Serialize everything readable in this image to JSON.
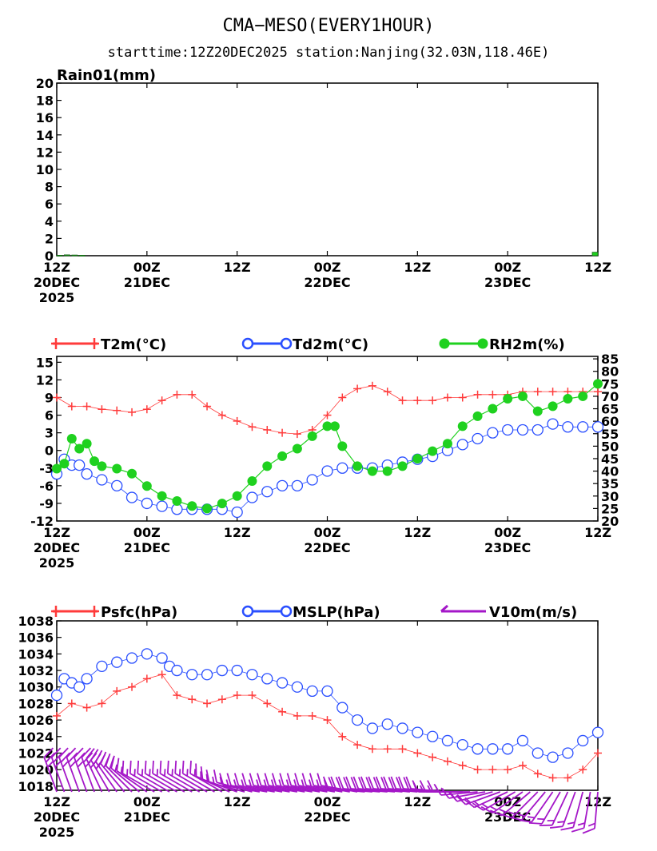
{
  "title": "CMA−MESO(EVERY1HOUR)",
  "subtitle": "starttime:12Z20DEC2025    station:Nanjing(32.03N,118.46E)",
  "x_ticks": [
    {
      "t": 0,
      "lines": [
        "12Z",
        "20DEC",
        "2025"
      ]
    },
    {
      "t": 12,
      "lines": [
        "00Z",
        "21DEC"
      ]
    },
    {
      "t": 24,
      "lines": [
        "12Z"
      ]
    },
    {
      "t": 36,
      "lines": [
        "00Z",
        "22DEC"
      ]
    },
    {
      "t": 48,
      "lines": [
        "12Z"
      ]
    },
    {
      "t": 60,
      "lines": [
        "00Z",
        "23DEC"
      ]
    },
    {
      "t": 72,
      "lines": [
        "12Z"
      ]
    }
  ],
  "colors": {
    "t2m": "#ff3b3b",
    "td2m": "#2a4fff",
    "rh2m": "#1fd11f",
    "psfc": "#ff3b3b",
    "mslp": "#2a4fff",
    "v10m": "#a417c8",
    "rain": "#1fd11f"
  },
  "chart_data": [
    {
      "type": "bar",
      "ylabel": "Rain01(mm)",
      "ylim": [
        0,
        20
      ],
      "yticks": [
        0,
        2,
        4,
        6,
        8,
        10,
        12,
        14,
        16,
        18,
        20
      ],
      "x": [
        0,
        1,
        2,
        3,
        72
      ],
      "values": [
        0.05,
        0.1,
        0.08,
        0.05,
        0.4
      ]
    },
    {
      "type": "line",
      "ylim": [
        -12,
        16
      ],
      "yticks": [
        -12,
        -9,
        -6,
        -3,
        0,
        3,
        6,
        9,
        12,
        15
      ],
      "y2lim": [
        20,
        86
      ],
      "y2ticks": [
        20,
        25,
        30,
        35,
        40,
        45,
        50,
        55,
        60,
        65,
        70,
        75,
        80,
        85
      ],
      "series": [
        {
          "name": "T2m(°C)",
          "axis": "left",
          "marker": "plus",
          "x": [
            0,
            2,
            4,
            6,
            8,
            10,
            12,
            14,
            16,
            18,
            20,
            22,
            24,
            26,
            28,
            30,
            32,
            34,
            36,
            38,
            40,
            42,
            44,
            46,
            48,
            50,
            52,
            54,
            56,
            58,
            60,
            62,
            64,
            66,
            68,
            70,
            72
          ],
          "y": [
            9,
            7.5,
            7.5,
            7,
            6.8,
            6.5,
            7,
            8.5,
            9.5,
            9.5,
            7.5,
            6,
            5,
            4,
            3.5,
            3,
            2.8,
            3.5,
            6,
            9,
            10.5,
            11,
            10,
            8.5,
            8.5,
            8.5,
            9,
            9,
            9.5,
            9.5,
            9.5,
            10,
            10,
            10,
            10,
            10,
            10
          ]
        },
        {
          "name": "Td2m(°C)",
          "axis": "left",
          "marker": "circle",
          "x": [
            0,
            1,
            2,
            3,
            4,
            6,
            8,
            10,
            12,
            14,
            16,
            18,
            20,
            22,
            24,
            26,
            28,
            30,
            32,
            34,
            36,
            38,
            40,
            42,
            44,
            46,
            48,
            50,
            52,
            54,
            56,
            58,
            60,
            62,
            64,
            66,
            68,
            70,
            72
          ],
          "y": [
            -4,
            -1.5,
            -2.5,
            -2.5,
            -4,
            -5,
            -6,
            -8,
            -9,
            -9.5,
            -10,
            -10,
            -10,
            -10,
            -10.5,
            -8,
            -7,
            -6,
            -6,
            -5,
            -3.5,
            -3,
            -3,
            -3,
            -2.5,
            -2,
            -1.5,
            -1,
            0,
            1,
            2,
            3,
            3.5,
            3.5,
            3.5,
            4.5,
            4,
            4,
            4
          ]
        },
        {
          "name": "RH2m(%)",
          "axis": "right",
          "marker": "dot",
          "x": [
            0,
            1,
            2,
            3,
            4,
            5,
            6,
            8,
            10,
            12,
            14,
            16,
            18,
            20,
            22,
            24,
            26,
            28,
            30,
            32,
            34,
            36,
            37,
            38,
            40,
            42,
            44,
            46,
            48,
            50,
            52,
            54,
            56,
            58,
            60,
            62,
            64,
            66,
            68,
            70,
            72
          ],
          "y": [
            41,
            43,
            53,
            49,
            51,
            44,
            42,
            41,
            39,
            34,
            30,
            28,
            26,
            25,
            27,
            30,
            36,
            42,
            46,
            49,
            54,
            58,
            58,
            50,
            42,
            40,
            40,
            42,
            45,
            48,
            51,
            58,
            62,
            65,
            69,
            70,
            64,
            66,
            69,
            70,
            75
          ]
        }
      ]
    },
    {
      "type": "line",
      "ylim": [
        1017.5,
        1038
      ],
      "yticks": [
        1018,
        1020,
        1022,
        1024,
        1026,
        1028,
        1030,
        1032,
        1034,
        1036,
        1038
      ],
      "series": [
        {
          "name": "Psfc(hPa)",
          "marker": "plus",
          "x": [
            0,
            2,
            4,
            6,
            8,
            10,
            12,
            14,
            16,
            18,
            20,
            22,
            24,
            26,
            28,
            30,
            32,
            34,
            36,
            38,
            40,
            42,
            44,
            46,
            48,
            50,
            52,
            54,
            56,
            58,
            60,
            62,
            64,
            66,
            68,
            70,
            72
          ],
          "y": [
            1026.5,
            1028,
            1027.5,
            1028,
            1029.5,
            1030,
            1031,
            1031.5,
            1029,
            1028.5,
            1028,
            1028.5,
            1029,
            1029,
            1028,
            1027,
            1026.5,
            1026.5,
            1026,
            1024,
            1023,
            1022.5,
            1022.5,
            1022.5,
            1022,
            1021.5,
            1021,
            1020.5,
            1020,
            1020,
            1020,
            1020.5,
            1019.5,
            1019,
            1019,
            1020,
            1022
          ]
        },
        {
          "name": "MSLP(hPa)",
          "marker": "circle",
          "x": [
            0,
            1,
            2,
            3,
            4,
            6,
            8,
            10,
            12,
            14,
            15,
            16,
            18,
            20,
            22,
            24,
            26,
            28,
            30,
            32,
            34,
            36,
            38,
            40,
            42,
            44,
            46,
            48,
            50,
            52,
            54,
            56,
            58,
            60,
            62,
            64,
            66,
            68,
            70,
            72
          ],
          "y": [
            1029,
            1031,
            1030.5,
            1030,
            1031,
            1032.5,
            1033,
            1033.5,
            1034,
            1033.5,
            1032.5,
            1032,
            1031.5,
            1031.5,
            1032,
            1032,
            1031.5,
            1031,
            1030.5,
            1030,
            1029.5,
            1029.5,
            1027.5,
            1026,
            1025,
            1025.5,
            1025,
            1024.5,
            1024,
            1023.5,
            1023,
            1022.5,
            1022.5,
            1022.5,
            1023.5,
            1022,
            1021.5,
            1022,
            1023.5,
            1024.5
          ]
        },
        {
          "name": "V10m(m/s)",
          "marker": "barb",
          "x": [
            0,
            1,
            2,
            3,
            4,
            5,
            6,
            7,
            8,
            9,
            10,
            11,
            12,
            13,
            14,
            15,
            16,
            17,
            18,
            19,
            20,
            21,
            22,
            23,
            24,
            25,
            26,
            27,
            28,
            29,
            30,
            31,
            32,
            33,
            34,
            35,
            36,
            37,
            38,
            39,
            40,
            41,
            42,
            43,
            44,
            45,
            46,
            47,
            48,
            49,
            50,
            51,
            52,
            53,
            54,
            55,
            56,
            57,
            58,
            59,
            60,
            61,
            62,
            63,
            64,
            65,
            66,
            67,
            68,
            69,
            70,
            71,
            72
          ],
          "dir": [
            340,
            340,
            340,
            340,
            340,
            340,
            335,
            330,
            325,
            320,
            315,
            310,
            305,
            300,
            300,
            300,
            300,
            300,
            300,
            300,
            300,
            300,
            300,
            295,
            290,
            285,
            285,
            280,
            280,
            280,
            280,
            280,
            280,
            280,
            280,
            280,
            280,
            280,
            280,
            280,
            280,
            275,
            275,
            275,
            275,
            275,
            275,
            275,
            275,
            275,
            275,
            275,
            275,
            270,
            270,
            270,
            265,
            260,
            255,
            250,
            245,
            240,
            235,
            230,
            225,
            220,
            215,
            210,
            205,
            200,
            195,
            190,
            185
          ],
          "speed": [
            9,
            10,
            10,
            10,
            10,
            10,
            9,
            9,
            8,
            8,
            8,
            7,
            7,
            6,
            6,
            6,
            6,
            6,
            6,
            6,
            7,
            7,
            7,
            7,
            7,
            7,
            7,
            7,
            7,
            7,
            7,
            7,
            7,
            7,
            7,
            7,
            7,
            7,
            7,
            7,
            7,
            8,
            8,
            8,
            8,
            8,
            8,
            8,
            8,
            8,
            8,
            8,
            7,
            7,
            7,
            6,
            6,
            6,
            6,
            6,
            6,
            6,
            6,
            6,
            6,
            6,
            6,
            6,
            6,
            6,
            6,
            6,
            6
          ]
        }
      ]
    }
  ]
}
